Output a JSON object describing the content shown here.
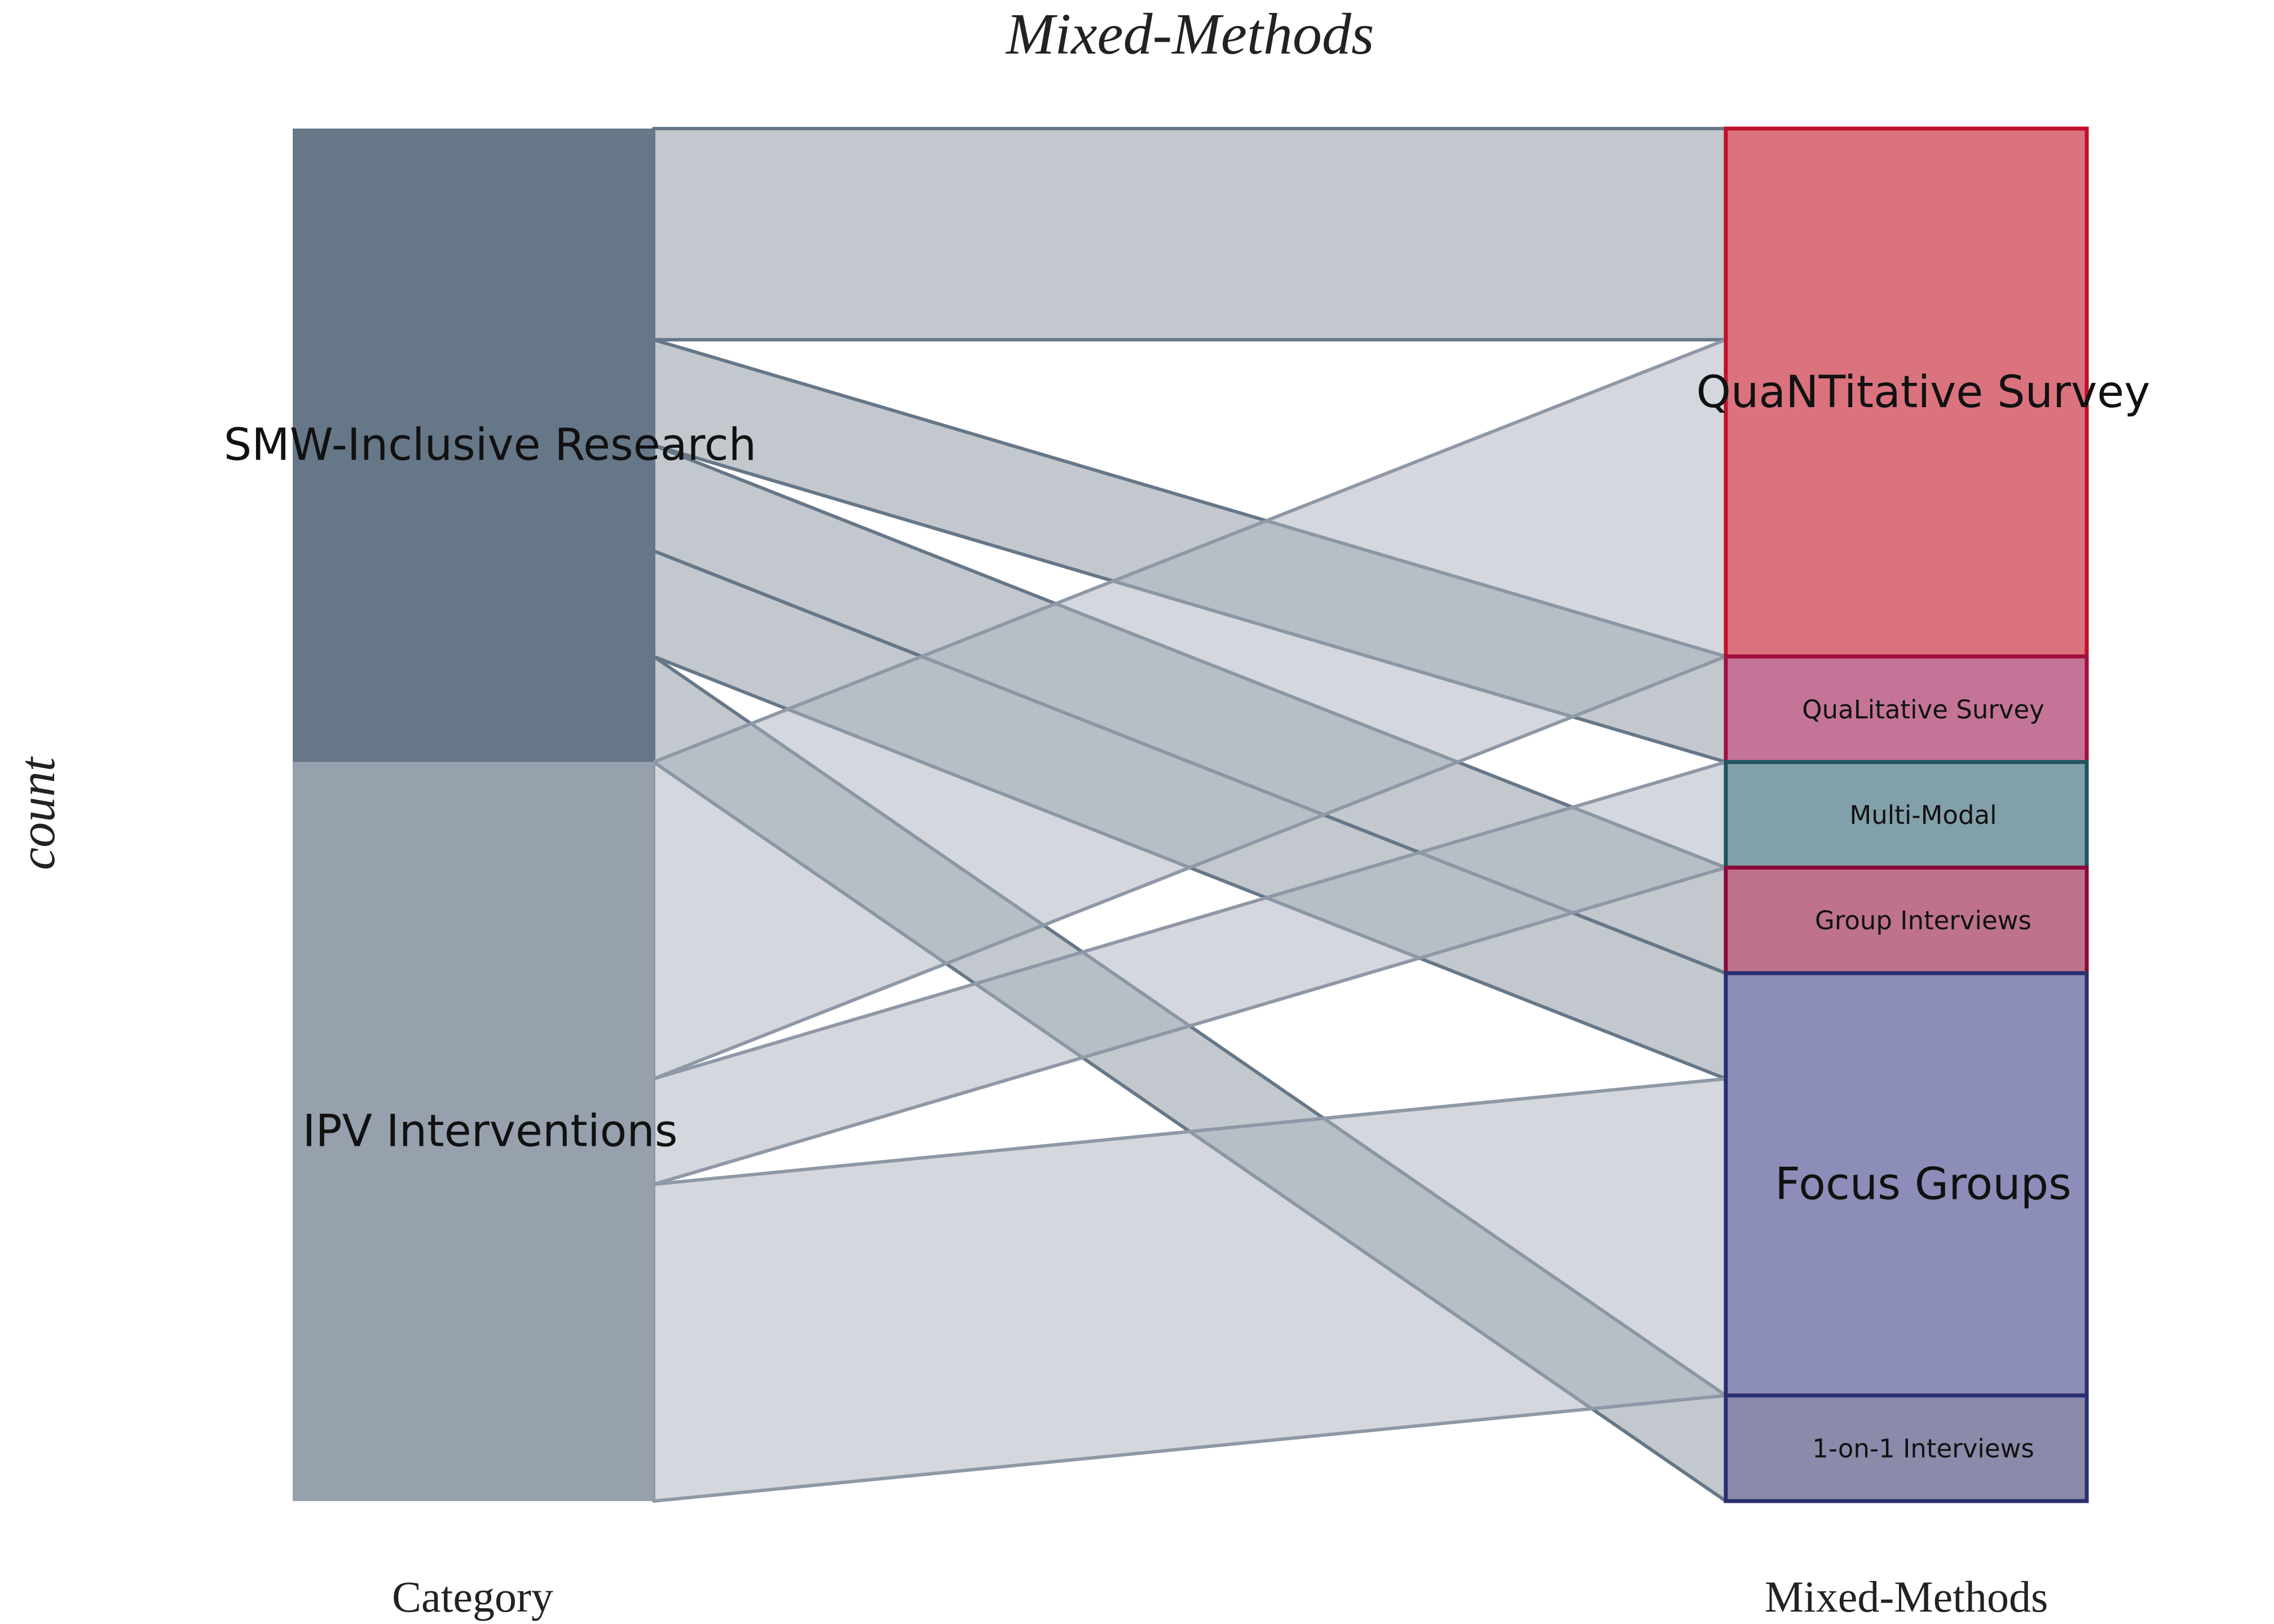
{
  "chart_data": {
    "type": "alluvial",
    "title": "Mixed-Methods",
    "ylabel": "count",
    "axes": [
      "Category",
      "Mixed-Methods"
    ],
    "stratum_colors": {
      "SMW-Inclusive Research": "#667788",
      "IPV Interventions": "#97A0AD",
      "QuaNTitative Survey": "#DA737E",
      "QuaLitative Survey": "#C47597",
      "Multi-Modal": "#82A0A9",
      "Group Interviews": "#BE728E",
      "Focus Groups": "#8C8DB8",
      "1-on-1 Interviews": "#8B8AAA"
    },
    "stratum_borders": {
      "QuaNTitative Survey": "#C0102A",
      "QuaLitative Survey": "#A01040",
      "Multi-Modal": "#1F5560",
      "Group Interviews": "#8A0A3A",
      "Focus Groups": "#2A2F6E",
      "1-on-1 Interviews": "#2A2F6E"
    },
    "left_strata": [
      {
        "label": "SMW-Inclusive Research",
        "value": 6
      },
      {
        "label": "IPV Interventions",
        "value": 7
      }
    ],
    "right_strata": [
      {
        "label": "QuaNTitative Survey",
        "value": 5
      },
      {
        "label": "QuaLitative Survey",
        "value": 1
      },
      {
        "label": "Multi-Modal",
        "value": 1
      },
      {
        "label": "Group Interviews",
        "value": 1
      },
      {
        "label": "Focus Groups",
        "value": 4
      },
      {
        "label": "1-on-1 Interviews",
        "value": 1
      }
    ],
    "flows": [
      {
        "from": "SMW-Inclusive Research",
        "to": "QuaNTitative Survey",
        "value": 2
      },
      {
        "from": "SMW-Inclusive Research",
        "to": "QuaLitative Survey",
        "value": 1
      },
      {
        "from": "SMW-Inclusive Research",
        "to": "Group Interviews",
        "value": 1
      },
      {
        "from": "SMW-Inclusive Research",
        "to": "Focus Groups",
        "value": 1
      },
      {
        "from": "SMW-Inclusive Research",
        "to": "1-on-1 Interviews",
        "value": 1
      },
      {
        "from": "IPV Interventions",
        "to": "QuaNTitative Survey",
        "value": 3
      },
      {
        "from": "IPV Interventions",
        "to": "Multi-Modal",
        "value": 1
      },
      {
        "from": "IPV Interventions",
        "to": "Focus Groups",
        "value": 3
      }
    ],
    "flow_colors": {
      "SMW-Inclusive Research": {
        "fill": "#8A95A0",
        "stroke": "#667788"
      },
      "IPV Interventions": {
        "fill": "#ADB4BF",
        "stroke": "#8E98A6"
      }
    }
  }
}
